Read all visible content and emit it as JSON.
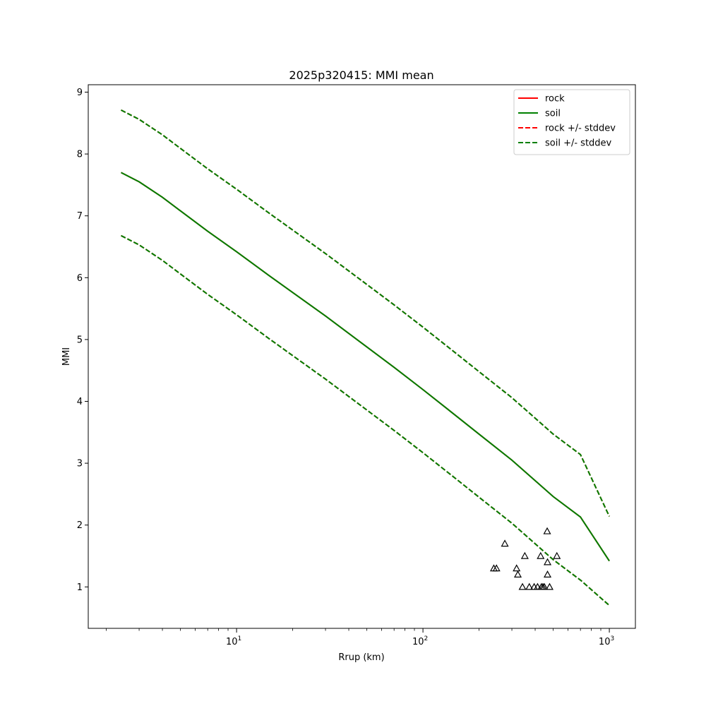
{
  "chart_data": {
    "type": "line",
    "title": "2025p320415: MMI mean",
    "xlabel": "Rrup (km)",
    "ylabel": "MMI",
    "xscale": "log",
    "xlim": [
      1.6,
      1380
    ],
    "ylim": [
      0.33,
      9.12
    ],
    "xticks": [
      {
        "value": 10,
        "base": "10",
        "exp": "1"
      },
      {
        "value": 100,
        "base": "10",
        "exp": "2"
      },
      {
        "value": 1000,
        "base": "10",
        "exp": "3"
      }
    ],
    "yticks": [
      1,
      2,
      3,
      4,
      5,
      6,
      7,
      8,
      9
    ],
    "grid": false,
    "legend_position": "top-right",
    "x": [
      2.4,
      3,
      4,
      5,
      7,
      10,
      15,
      20,
      30,
      50,
      70,
      100,
      150,
      200,
      300,
      500,
      700,
      1000
    ],
    "series": [
      {
        "name": "rock",
        "color": "#ff0000",
        "dash": false,
        "values": [
          7.7,
          7.55,
          7.3,
          7.08,
          6.75,
          6.42,
          6.03,
          5.76,
          5.38,
          4.88,
          4.55,
          4.19,
          3.77,
          3.47,
          3.05,
          2.46,
          2.13,
          1.42
        ]
      },
      {
        "name": "soil",
        "color": "#008000",
        "dash": false,
        "values": [
          7.7,
          7.55,
          7.3,
          7.08,
          6.75,
          6.42,
          6.03,
          5.76,
          5.38,
          4.88,
          4.55,
          4.19,
          3.77,
          3.47,
          3.05,
          2.46,
          2.13,
          1.42
        ]
      },
      {
        "name": "rock +/- stddev",
        "color": "#ff0000",
        "dash": true,
        "values_upper": [
          8.71,
          8.56,
          8.31,
          8.09,
          7.76,
          7.43,
          7.04,
          6.77,
          6.39,
          5.89,
          5.56,
          5.2,
          4.78,
          4.48,
          4.06,
          3.47,
          3.14,
          2.14
        ],
        "values_lower": [
          6.68,
          6.53,
          6.28,
          6.06,
          5.73,
          5.4,
          5.01,
          4.74,
          4.36,
          3.86,
          3.53,
          3.17,
          2.75,
          2.45,
          2.03,
          1.44,
          1.11,
          0.7
        ]
      },
      {
        "name": "soil +/- stddev",
        "color": "#008000",
        "dash": true,
        "values_upper": [
          8.71,
          8.56,
          8.31,
          8.09,
          7.76,
          7.43,
          7.04,
          6.77,
          6.39,
          5.89,
          5.56,
          5.2,
          4.78,
          4.48,
          4.06,
          3.47,
          3.14,
          2.14
        ],
        "values_lower": [
          6.68,
          6.53,
          6.28,
          6.06,
          5.73,
          5.4,
          5.01,
          4.74,
          4.36,
          3.86,
          3.53,
          3.17,
          2.75,
          2.45,
          2.03,
          1.44,
          1.11,
          0.7
        ]
      }
    ],
    "observations": {
      "marker": "triangle-open",
      "color": "#000000",
      "points": [
        {
          "x": 240,
          "y": 1.3
        },
        {
          "x": 248,
          "y": 1.3
        },
        {
          "x": 275,
          "y": 1.7
        },
        {
          "x": 318,
          "y": 1.3
        },
        {
          "x": 323,
          "y": 1.2
        },
        {
          "x": 342,
          "y": 1.0
        },
        {
          "x": 352,
          "y": 1.5
        },
        {
          "x": 372,
          "y": 1.0
        },
        {
          "x": 395,
          "y": 1.0
        },
        {
          "x": 412,
          "y": 1.0
        },
        {
          "x": 428,
          "y": 1.5
        },
        {
          "x": 432,
          "y": 1.0
        },
        {
          "x": 440,
          "y": 1.0
        },
        {
          "x": 448,
          "y": 1.0
        },
        {
          "x": 464,
          "y": 1.9
        },
        {
          "x": 466,
          "y": 1.4
        },
        {
          "x": 466,
          "y": 1.2
        },
        {
          "x": 478,
          "y": 1.0
        },
        {
          "x": 523,
          "y": 1.5
        }
      ]
    }
  }
}
